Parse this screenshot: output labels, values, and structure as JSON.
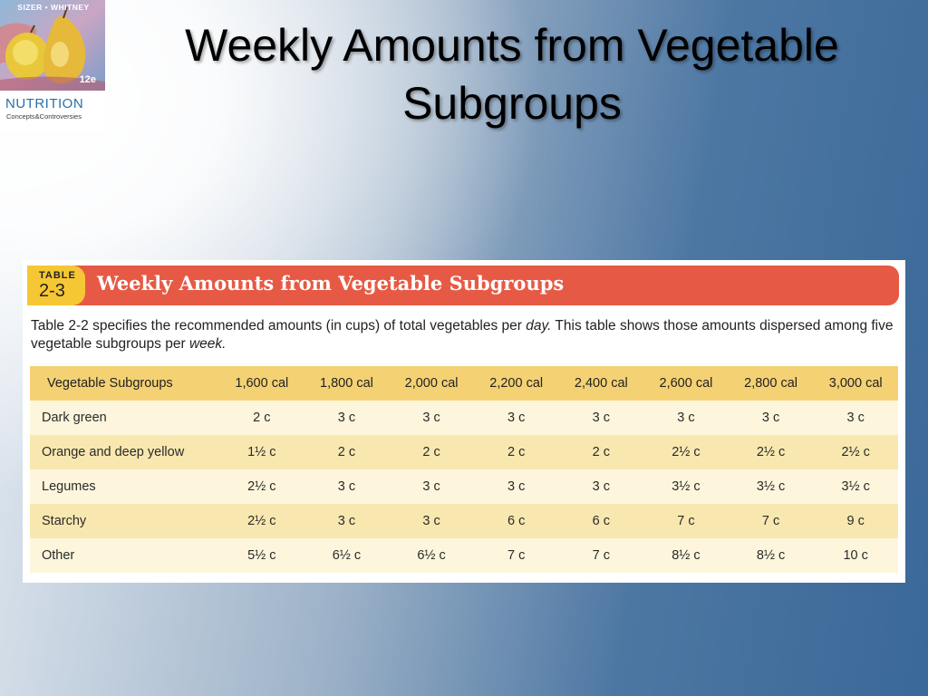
{
  "slide": {
    "title": "Weekly Amounts from Vegetable Subgroups"
  },
  "logo": {
    "authors": "SIZER • WHITNEY",
    "edition": "12e",
    "name": "NUTRITION",
    "subtitle": "Concepts&Controversies"
  },
  "table": {
    "badge_word": "TABLE",
    "badge_number": "2-3",
    "title": "Weekly Amounts from Vegetable Subgroups",
    "intro_part1": "Table 2-2 specifies the recommended amounts (in cups) of total vegetables per ",
    "intro_day": "day.",
    "intro_part2": " This table shows those amounts dispersed among five vegetable subgroups per ",
    "intro_week": "week.",
    "headers": [
      "Vegetable Subgroups",
      "1,600 cal",
      "1,800 cal",
      "2,000 cal",
      "2,200 cal",
      "2,400 cal",
      "2,600 cal",
      "2,800 cal",
      "3,000 cal"
    ],
    "rows": [
      [
        "Dark green",
        "2 c",
        "3 c",
        "3 c",
        "3 c",
        "3 c",
        "3 c",
        "3 c",
        "3 c"
      ],
      [
        "Orange and deep yellow",
        "1½ c",
        "2 c",
        "2 c",
        "2 c",
        "2 c",
        "2½ c",
        "2½ c",
        "2½ c"
      ],
      [
        "Legumes",
        "2½ c",
        "3 c",
        "3 c",
        "3 c",
        "3 c",
        "3½ c",
        "3½ c",
        "3½ c"
      ],
      [
        "Starchy",
        "2½ c",
        "3 c",
        "3 c",
        "6 c",
        "6 c",
        "7 c",
        "7 c",
        "9 c"
      ],
      [
        "Other",
        "5½ c",
        "6½ c",
        "6½ c",
        "7 c",
        "7 c",
        "8½ c",
        "8½ c",
        "10 c"
      ]
    ]
  },
  "colors": {
    "header_bar": "#e65a45",
    "badge": "#f6c734",
    "column_header": "#f4d173",
    "row_light": "#fdf6dc",
    "row_dark": "#f8e8b0",
    "background_blue": "#3a6898"
  }
}
